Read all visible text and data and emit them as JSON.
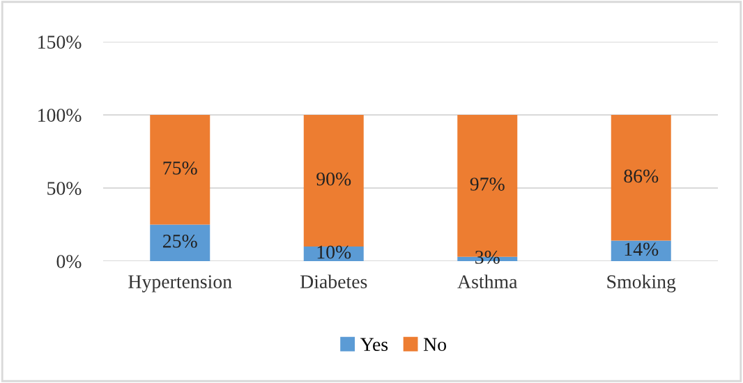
{
  "chart_data": {
    "type": "bar",
    "stacked": true,
    "categories": [
      "Hypertension",
      "Diabetes",
      "Asthma",
      "Smoking"
    ],
    "series": [
      {
        "name": "Yes",
        "color": "#5b9bd5",
        "values": [
          25,
          10,
          3,
          14
        ],
        "value_labels": [
          "25%",
          "10%",
          "3%",
          "14%"
        ]
      },
      {
        "name": "No",
        "color": "#ed7d31",
        "values": [
          75,
          90,
          97,
          86
        ],
        "value_labels": [
          "75%",
          "90%",
          "97%",
          "86%"
        ]
      }
    ],
    "ylim": [
      0,
      150
    ],
    "yticks": [
      {
        "value": 0,
        "label": "0%"
      },
      {
        "value": 50,
        "label": "50%"
      },
      {
        "value": 100,
        "label": "100%"
      },
      {
        "value": 150,
        "label": "150%"
      }
    ],
    "grid": "y",
    "legend": "bottom"
  }
}
